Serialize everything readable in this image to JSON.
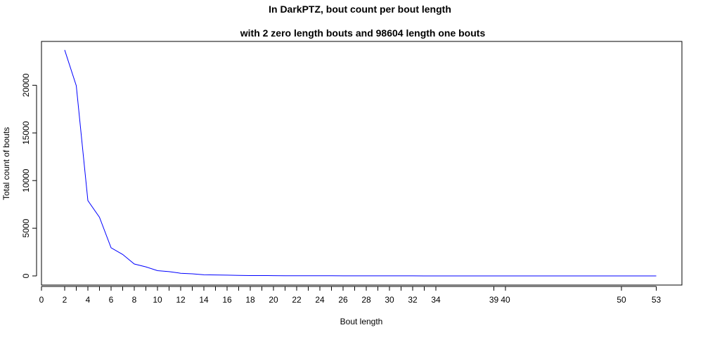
{
  "chart_data": {
    "type": "line",
    "title": "In DarkPTZ, bout count per bout length",
    "subtitle": "with 2 zero length bouts and 98604 length one bouts",
    "xlabel": "Bout length",
    "ylabel": "Total count of bouts",
    "xlim": [
      0,
      54
    ],
    "ylim": [
      0,
      25000
    ],
    "x_ticks": [
      0,
      2,
      3,
      4,
      5,
      6,
      7,
      8,
      9,
      10,
      11,
      12,
      13,
      14,
      15,
      16,
      17,
      18,
      19,
      20,
      21,
      22,
      23,
      24,
      25,
      26,
      27,
      28,
      29,
      30,
      31,
      32,
      33,
      34,
      39,
      40,
      50,
      53
    ],
    "x_tick_labels": [
      "0",
      "2",
      "",
      "4",
      "",
      "6",
      "",
      "8",
      "",
      "10",
      "",
      "12",
      "",
      "14",
      "",
      "16",
      "",
      "18",
      "",
      "20",
      "",
      "22",
      "",
      "24",
      "",
      "26",
      "",
      "28",
      "",
      "30",
      "",
      "32",
      "",
      "34",
      "39",
      "40",
      "50",
      "53"
    ],
    "y_ticks": [
      0,
      5000,
      10000,
      15000,
      20000
    ],
    "y_tick_labels": [
      "0",
      "5000",
      "10000",
      "15000",
      "20000"
    ],
    "grid": false,
    "series": [
      {
        "color": "#0000ff",
        "x": [
          2,
          3,
          4,
          5,
          6,
          7,
          8,
          9,
          10,
          11,
          12,
          13,
          14,
          15,
          16,
          17,
          18,
          19,
          20,
          21,
          22,
          23,
          24,
          25,
          26,
          27,
          28,
          29,
          30,
          31,
          32,
          33,
          34,
          39,
          40,
          50,
          53
        ],
        "y": [
          23700,
          19950,
          7900,
          6150,
          2950,
          2250,
          1250,
          950,
          550,
          450,
          280,
          220,
          120,
          100,
          80,
          60,
          40,
          35,
          30,
          25,
          20,
          18,
          15,
          12,
          10,
          8,
          8,
          6,
          5,
          5,
          4,
          3,
          3,
          2,
          2,
          1,
          1
        ]
      }
    ]
  }
}
